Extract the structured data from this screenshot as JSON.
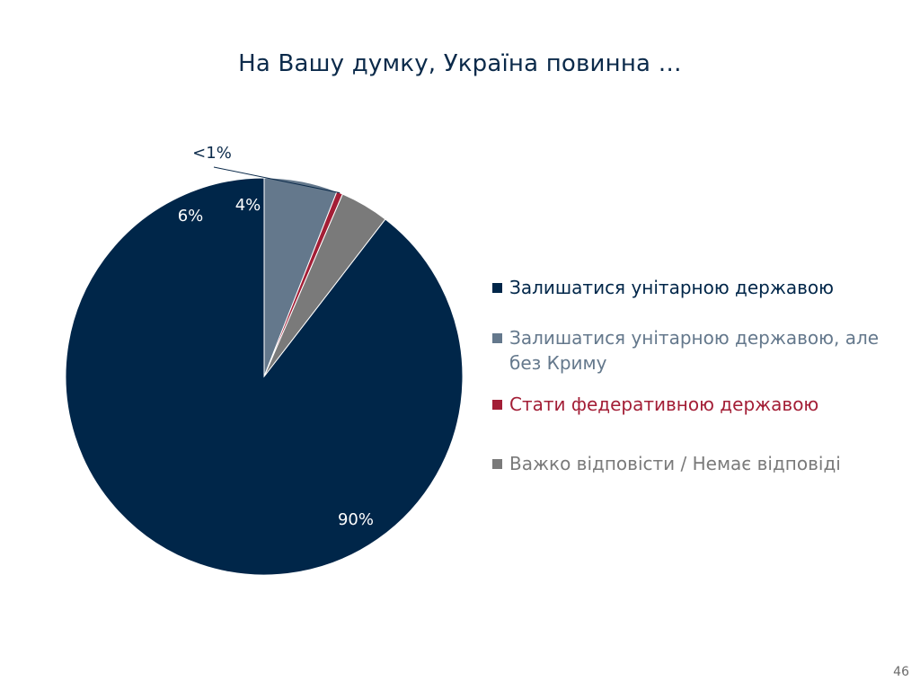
{
  "slide": {
    "title": "На Вашу думку, Україна повинна …",
    "page_number": "46"
  },
  "chart_data": {
    "type": "pie",
    "title": "На Вашу думку, Україна повинна …",
    "legend_position": "right",
    "slices": [
      {
        "name": "Залишатися унітарною державою",
        "value": 90,
        "label": "90%",
        "color": "#002649",
        "label_color": "#ffffff"
      },
      {
        "name": "Залишатися унітарною державою, але без Криму",
        "value": 6,
        "label": "6%",
        "color": "#64788c",
        "label_color": "#ffffff"
      },
      {
        "name": "Стати федеративною державою",
        "value": 0.5,
        "label": "<1%",
        "color": "#a31e36",
        "label_color": "#0b2a4a"
      },
      {
        "name": "Важко відповісти / Немає відповіді",
        "value": 4,
        "label": "4%",
        "color": "#7a7a7a",
        "label_color": "#ffffff"
      }
    ]
  }
}
